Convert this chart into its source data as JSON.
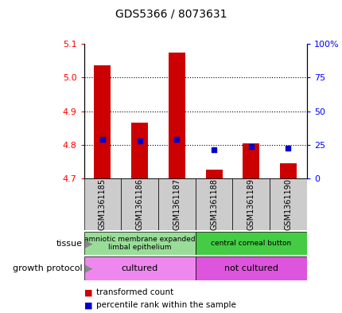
{
  "title": "GDS5366 / 8073631",
  "samples": [
    "GSM1361185",
    "GSM1361186",
    "GSM1361187",
    "GSM1361188",
    "GSM1361189",
    "GSM1361190"
  ],
  "bar_values": [
    5.035,
    4.865,
    5.075,
    4.725,
    4.805,
    4.745
  ],
  "bar_base": 4.7,
  "percentile_values": [
    4.815,
    4.812,
    4.815,
    4.785,
    4.795,
    4.79
  ],
  "ylim": [
    4.7,
    5.1
  ],
  "y2lim": [
    0,
    100
  ],
  "yticks": [
    4.7,
    4.8,
    4.9,
    5.0,
    5.1
  ],
  "y2ticks": [
    0,
    25,
    50,
    75,
    100
  ],
  "bar_color": "#cc0000",
  "percentile_color": "#0000cc",
  "tissue_groups": [
    {
      "label": "amniotic membrane expanded\nlimbal epithelium",
      "start": 0,
      "end": 3,
      "color": "#99dd99"
    },
    {
      "label": "central corneal button",
      "start": 3,
      "end": 6,
      "color": "#44cc44"
    }
  ],
  "growth_groups": [
    {
      "label": "cultured",
      "start": 0,
      "end": 3,
      "color": "#ee88ee"
    },
    {
      "label": "not cultured",
      "start": 3,
      "end": 6,
      "color": "#dd55dd"
    }
  ],
  "tissue_label": "tissue",
  "growth_label": "growth protocol",
  "legend_items": [
    {
      "label": "transformed count",
      "color": "#cc0000"
    },
    {
      "label": "percentile rank within the sample",
      "color": "#0000cc"
    }
  ],
  "sample_col_color": "#cccccc",
  "title_fontsize": 10,
  "tick_fontsize": 8,
  "sample_fontsize": 7,
  "annot_fontsize": 7.5,
  "legend_fontsize": 7.5
}
